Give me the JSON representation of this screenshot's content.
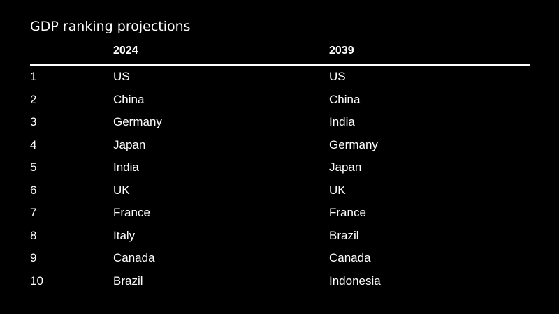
{
  "chart_data": {
    "type": "table",
    "title": "GDP ranking projections",
    "columns": [
      "",
      "2024",
      "2039"
    ],
    "rows": [
      [
        "1",
        "US",
        "US"
      ],
      [
        "2",
        "China",
        "China"
      ],
      [
        "3",
        "Germany",
        "India"
      ],
      [
        "4",
        "Japan",
        "Germany"
      ],
      [
        "5",
        "India",
        "Japan"
      ],
      [
        "6",
        "UK",
        "UK"
      ],
      [
        "7",
        "France",
        "France"
      ],
      [
        "8",
        "Italy",
        "Brazil"
      ],
      [
        "9",
        "Canada",
        "Canada"
      ],
      [
        "10",
        "Brazil",
        "Indonesia"
      ]
    ]
  },
  "colors": {
    "background": "#000000",
    "text": "#ffffff",
    "rule": "#ffffff"
  }
}
